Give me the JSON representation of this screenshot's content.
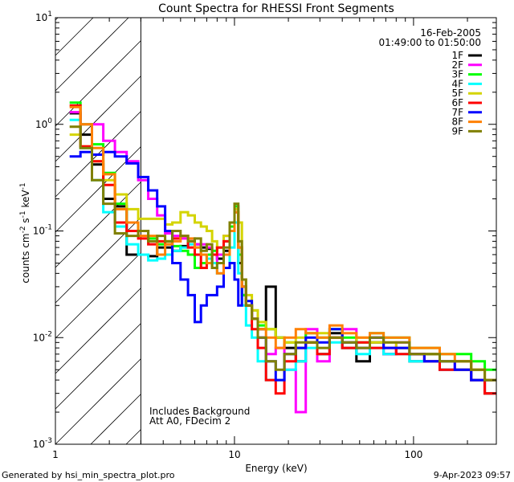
{
  "chart_data": {
    "type": "line",
    "title": "Count Spectra for RHESSI Front Segments",
    "xlabel": "Energy (keV)",
    "ylabel": {
      "base": "counts cm",
      "e1": "-2",
      "mid": " s",
      "e2": "-1",
      "mid2": " keV",
      "e3": "-1"
    },
    "xscale": "log",
    "yscale": "log",
    "xlim": [
      1,
      290
    ],
    "ylim": [
      0.001,
      10
    ],
    "x_ticks": [
      {
        "v": 1,
        "label": "1"
      },
      {
        "v": 10,
        "label": "10"
      },
      {
        "v": 100,
        "label": "100"
      }
    ],
    "y_ticks": [
      {
        "v": 10,
        "exp": "1"
      },
      {
        "v": 1,
        "exp": "0"
      },
      {
        "v": 0.1,
        "exp": "-1"
      },
      {
        "v": 0.01,
        "exp": "-2"
      },
      {
        "v": 0.001,
        "exp": "-3"
      }
    ],
    "hatched_region": [
      1,
      3
    ],
    "legend_position": "top-right",
    "legend_header": [
      "16-Feb-2005",
      "01:49:00 to 01:50:00"
    ],
    "annotations": [
      "Includes Background",
      "Att A0, FDecim 2"
    ],
    "energy_edges": [
      1.2,
      1.38,
      1.6,
      1.85,
      2.15,
      2.5,
      2.9,
      3.3,
      3.7,
      4.1,
      4.5,
      5,
      5.5,
      6,
      6.5,
      7,
      7.5,
      8,
      8.7,
      9.4,
      10,
      10.5,
      11,
      11.6,
      12.5,
      13.5,
      15,
      17,
      19,
      22,
      25,
      29,
      34,
      40,
      48,
      57,
      68,
      80,
      95,
      115,
      140,
      170,
      210,
      250,
      290
    ],
    "series": [
      {
        "name": "1F",
        "color": "#000000",
        "values": [
          1.27,
          0.8,
          0.42,
          0.2,
          0.17,
          0.06,
          0.06,
          0.058,
          0.07,
          0.07,
          0.065,
          0.072,
          0.08,
          0.075,
          0.07,
          0.068,
          0.06,
          0.055,
          0.065,
          0.1,
          0.15,
          0.05,
          0.025,
          0.02,
          0.015,
          0.012,
          0.03,
          0.01,
          0.008,
          0.006,
          0.009,
          0.007,
          0.011,
          0.008,
          0.006,
          0.009,
          0.007,
          0.008,
          0.006,
          0.007,
          0.005,
          0.005,
          0.004,
          0.003
        ]
      },
      {
        "name": "2F",
        "color": "#ff00ff",
        "values": [
          1.3,
          1.0,
          1.0,
          0.7,
          0.55,
          0.45,
          0.3,
          0.2,
          0.14,
          0.095,
          0.09,
          0.085,
          0.08,
          0.075,
          0.075,
          0.07,
          0.05,
          0.06,
          0.09,
          0.12,
          0.17,
          0.06,
          0.03,
          0.02,
          0.015,
          0.01,
          0.007,
          0.008,
          0.005,
          0.002,
          0.012,
          0.006,
          0.01,
          0.012,
          0.008,
          0.01,
          0.007,
          0.009,
          0.007,
          0.006,
          0.005,
          0.006,
          0.004,
          0.004
        ]
      },
      {
        "name": "3F",
        "color": "#00ff00",
        "values": [
          1.6,
          1.0,
          0.65,
          0.35,
          0.18,
          0.12,
          0.1,
          0.085,
          0.075,
          0.08,
          0.072,
          0.065,
          0.06,
          0.045,
          0.05,
          0.06,
          0.065,
          0.07,
          0.08,
          0.11,
          0.17,
          0.06,
          0.025,
          0.02,
          0.018,
          0.013,
          0.012,
          0.01,
          0.009,
          0.008,
          0.011,
          0.01,
          0.012,
          0.01,
          0.009,
          0.011,
          0.01,
          0.01,
          0.008,
          0.008,
          0.007,
          0.007,
          0.006,
          0.005
        ]
      },
      {
        "name": "4F",
        "color": "#00ffff",
        "values": [
          1.1,
          0.6,
          0.3,
          0.15,
          0.11,
          0.075,
          0.06,
          0.053,
          0.055,
          0.06,
          0.065,
          0.07,
          0.075,
          0.07,
          0.06,
          0.055,
          0.05,
          0.04,
          0.045,
          0.07,
          0.12,
          0.04,
          0.02,
          0.013,
          0.01,
          0.006,
          0.004,
          0.004,
          0.005,
          0.006,
          0.008,
          0.007,
          0.009,
          0.008,
          0.007,
          0.008,
          0.007,
          0.007,
          0.006,
          0.006,
          0.005,
          0.005,
          0.004,
          0.004
        ]
      },
      {
        "name": "5F",
        "color": "#d4d400",
        "values": [
          0.8,
          0.62,
          0.45,
          0.3,
          0.22,
          0.16,
          0.13,
          0.13,
          0.13,
          0.115,
          0.12,
          0.15,
          0.14,
          0.12,
          0.11,
          0.1,
          0.08,
          0.07,
          0.09,
          0.12,
          0.16,
          0.12,
          0.035,
          0.025,
          0.018,
          0.014,
          0.012,
          0.01,
          0.009,
          0.01,
          0.009,
          0.011,
          0.01,
          0.009,
          0.01,
          0.009,
          0.009,
          0.008,
          0.007,
          0.007,
          0.006,
          0.006,
          0.005,
          0.004
        ]
      },
      {
        "name": "6F",
        "color": "#ff0000",
        "values": [
          1.5,
          0.62,
          0.45,
          0.27,
          0.12,
          0.1,
          0.085,
          0.075,
          0.08,
          0.075,
          0.085,
          0.09,
          0.07,
          0.06,
          0.045,
          0.05,
          0.06,
          0.07,
          0.08,
          0.1,
          0.15,
          0.07,
          0.03,
          0.02,
          0.012,
          0.008,
          0.004,
          0.003,
          0.006,
          0.008,
          0.009,
          0.007,
          0.01,
          0.008,
          0.009,
          0.008,
          0.008,
          0.007,
          0.007,
          0.006,
          0.005,
          0.005,
          0.004,
          0.003
        ]
      },
      {
        "name": "7F",
        "color": "#0000ff",
        "values": [
          0.5,
          0.55,
          0.52,
          0.55,
          0.5,
          0.43,
          0.32,
          0.24,
          0.17,
          0.1,
          0.05,
          0.035,
          0.025,
          0.014,
          0.02,
          0.025,
          0.025,
          0.03,
          0.045,
          0.05,
          0.035,
          0.02,
          0.03,
          0.022,
          0.015,
          0.01,
          0.006,
          0.004,
          0.007,
          0.008,
          0.01,
          0.009,
          0.012,
          0.009,
          0.008,
          0.01,
          0.008,
          0.008,
          0.007,
          0.006,
          0.006,
          0.005,
          0.004,
          0.004
        ]
      },
      {
        "name": "8F",
        "color": "#ff8000",
        "values": [
          1.45,
          1.0,
          0.6,
          0.34,
          0.16,
          0.12,
          0.09,
          0.09,
          0.06,
          0.075,
          0.08,
          0.09,
          0.085,
          0.07,
          0.06,
          0.05,
          0.045,
          0.04,
          0.06,
          0.1,
          0.15,
          0.07,
          0.03,
          0.02,
          0.015,
          0.012,
          0.01,
          0.008,
          0.01,
          0.012,
          0.011,
          0.01,
          0.013,
          0.011,
          0.01,
          0.011,
          0.01,
          0.01,
          0.008,
          0.008,
          0.007,
          0.006,
          0.005,
          0.004
        ]
      },
      {
        "name": "9F",
        "color": "#808000",
        "values": [
          0.95,
          0.6,
          0.3,
          0.18,
          0.095,
          0.09,
          0.1,
          0.08,
          0.09,
          0.08,
          0.1,
          0.09,
          0.08,
          0.085,
          0.065,
          0.075,
          0.045,
          0.05,
          0.07,
          0.12,
          0.18,
          0.08,
          0.035,
          0.02,
          0.015,
          0.01,
          0.006,
          0.005,
          0.007,
          0.009,
          0.009,
          0.008,
          0.01,
          0.009,
          0.008,
          0.01,
          0.009,
          0.009,
          0.007,
          0.007,
          0.006,
          0.006,
          0.005,
          0.004
        ]
      }
    ]
  },
  "footer": {
    "left": "Generated by hsi_min_spectra_plot.pro",
    "right": "9-Apr-2023 09:57"
  }
}
